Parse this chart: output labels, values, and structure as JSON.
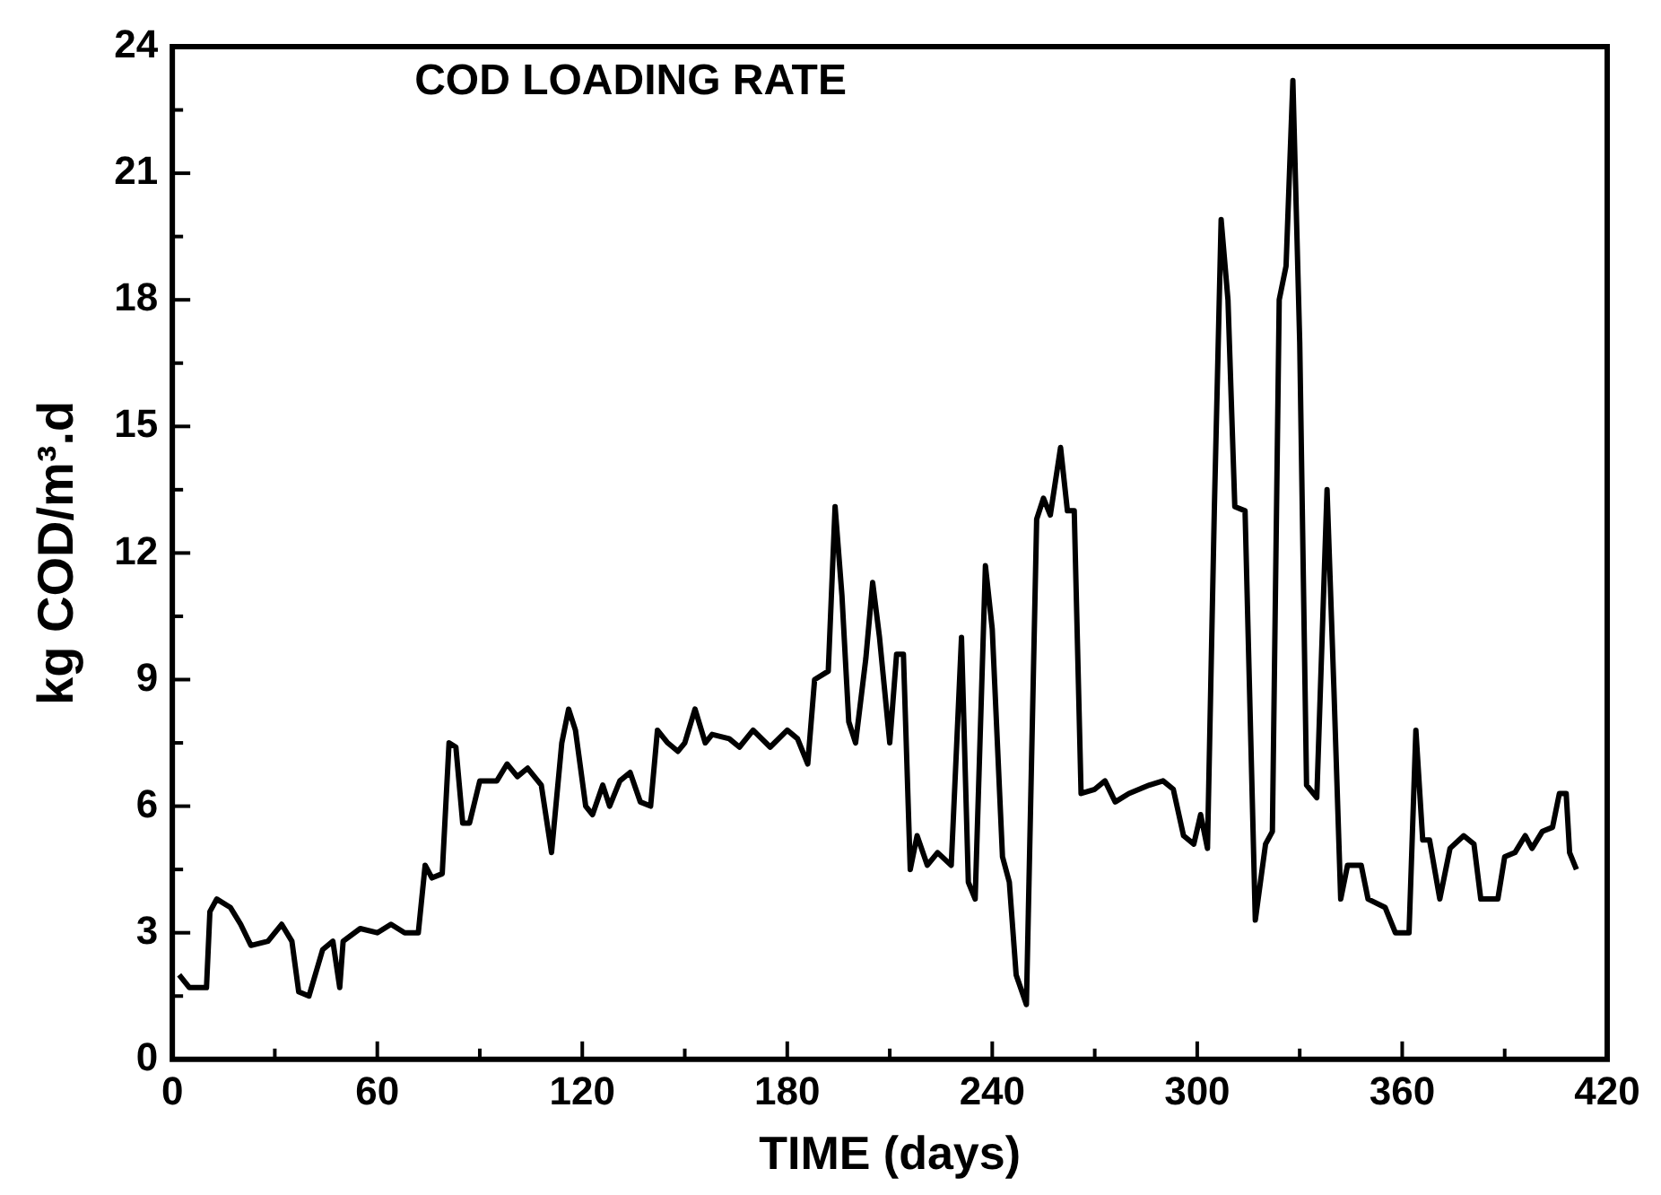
{
  "chart_data": {
    "type": "line",
    "title": "COD LOADING RATE",
    "xlabel": "TIME (days)",
    "ylabel": "kg COD/m³.d",
    "x": [
      2,
      5,
      10,
      11,
      13,
      17,
      20,
      23,
      28,
      32,
      35,
      37,
      40,
      44,
      47,
      49,
      50,
      55,
      60,
      64,
      68,
      72,
      74,
      76,
      79,
      81,
      83,
      85,
      87,
      90,
      95,
      98,
      101,
      104,
      108,
      111,
      114,
      116,
      118,
      121,
      123,
      126,
      128,
      131,
      134,
      137,
      140,
      142,
      145,
      148,
      150,
      153,
      156,
      158,
      163,
      166,
      170,
      175,
      180,
      183,
      186,
      188,
      192,
      194,
      196,
      198,
      200,
      203,
      205,
      207,
      210,
      212,
      214,
      216,
      218,
      221,
      224,
      228,
      231,
      233,
      235,
      238,
      240,
      243,
      245,
      247,
      250,
      253,
      255,
      257,
      260,
      262,
      264,
      266,
      270,
      273,
      276,
      280,
      283,
      286,
      290,
      293,
      296,
      299,
      301,
      303,
      305,
      307,
      309,
      311,
      314,
      317,
      320,
      322,
      324,
      326,
      328,
      330,
      332,
      335,
      338,
      340,
      342,
      344,
      348,
      350,
      355,
      358,
      362,
      364,
      366,
      368,
      371,
      374,
      378,
      381,
      383,
      388,
      390,
      393,
      396,
      398,
      401,
      404,
      406,
      408,
      409,
      411
    ],
    "series": [
      {
        "color": "#000000",
        "values": [
          2.0,
          1.7,
          1.7,
          3.5,
          3.8,
          3.6,
          3.2,
          2.7,
          2.8,
          3.2,
          2.8,
          1.6,
          1.5,
          2.6,
          2.8,
          1.7,
          2.8,
          3.1,
          3.0,
          3.2,
          3.0,
          3.0,
          4.6,
          4.3,
          4.4,
          7.5,
          7.4,
          5.6,
          5.6,
          6.6,
          6.6,
          7.0,
          6.7,
          6.9,
          6.5,
          4.9,
          7.5,
          8.3,
          7.8,
          6.0,
          5.8,
          6.5,
          6.0,
          6.6,
          6.8,
          6.1,
          6.0,
          7.8,
          7.5,
          7.3,
          7.5,
          8.3,
          7.5,
          7.7,
          7.6,
          7.4,
          7.8,
          7.4,
          7.8,
          7.6,
          7.0,
          9.0,
          9.2,
          13.1,
          11.0,
          8.0,
          7.5,
          9.5,
          11.3,
          10.0,
          7.5,
          9.6,
          9.6,
          4.5,
          5.3,
          4.6,
          4.9,
          4.6,
          10.0,
          4.2,
          3.8,
          11.7,
          10.2,
          4.8,
          4.2,
          2.0,
          1.3,
          12.8,
          13.3,
          12.9,
          14.5,
          13.0,
          13.0,
          6.3,
          6.4,
          6.6,
          6.1,
          6.3,
          6.4,
          6.5,
          6.6,
          6.4,
          5.3,
          5.1,
          5.8,
          5.0,
          13.0,
          19.9,
          18.0,
          13.1,
          13.0,
          3.3,
          5.1,
          5.4,
          18.0,
          18.8,
          23.2,
          17.0,
          6.5,
          6.2,
          13.5,
          8.8,
          3.8,
          4.6,
          4.6,
          3.8,
          3.6,
          3.0,
          3.0,
          7.8,
          5.2,
          5.2,
          3.8,
          5.0,
          5.3,
          5.1,
          3.8,
          3.8,
          4.8,
          4.9,
          5.3,
          5.0,
          5.4,
          5.5,
          6.3,
          6.3,
          4.9,
          4.5
        ]
      }
    ],
    "xlim": [
      0,
      420
    ],
    "xticks": [
      0,
      {
        "value": 30,
        "label": null
      },
      60,
      {
        "value": 90,
        "label": null
      },
      120,
      {
        "value": 150,
        "label": null
      },
      180,
      {
        "value": 210,
        "label": null
      },
      240,
      {
        "value": 270,
        "label": null
      },
      300,
      {
        "value": 330,
        "label": null
      },
      360,
      {
        "value": 390,
        "label": null
      },
      420
    ],
    "ylim": [
      0,
      24
    ],
    "yticks": [
      0,
      {
        "value": 1.5,
        "label": null
      },
      3,
      {
        "value": 4.5,
        "label": null
      },
      6,
      {
        "value": 7.5,
        "label": null
      },
      9,
      {
        "value": 10.5,
        "label": null
      },
      12,
      {
        "value": 13.5,
        "label": null
      },
      15,
      {
        "value": 16.5,
        "label": null
      },
      18,
      {
        "value": 19.5,
        "label": null
      },
      21,
      {
        "value": 22.5,
        "label": null
      },
      24
    ],
    "grid": false,
    "legend": false,
    "marker": "none",
    "line_style": "solid"
  }
}
